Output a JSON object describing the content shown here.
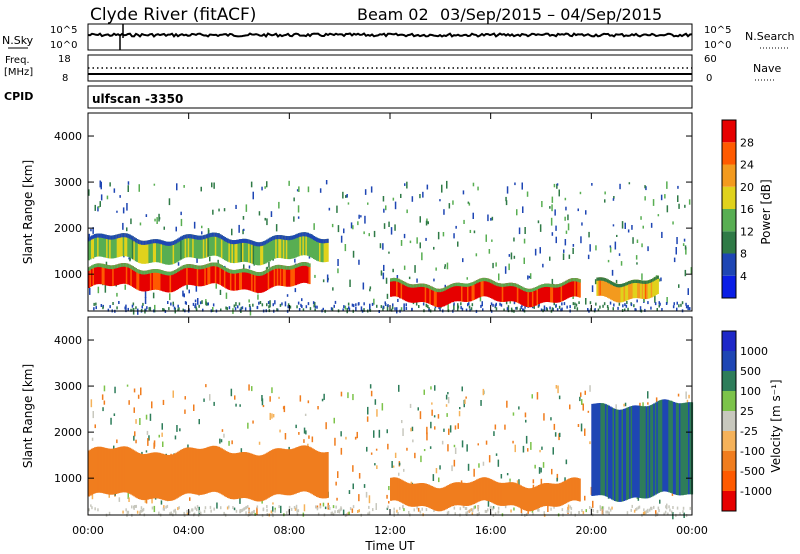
{
  "header": {
    "station": "Clyde River (fitACF)",
    "beam": "Beam 02",
    "date_range": "03/Sep/2015 – 04/Sep/2015"
  },
  "strip_labels": {
    "nsky": "N.Sky",
    "nsky_top": "10^5",
    "nsky_bottom": "10^0",
    "nsearch": "N.Search",
    "nsearch_top": "10^5",
    "nsearch_bottom": "10^0",
    "freq_line1": "Freq.",
    "freq_line2": "[MHz]",
    "freq_top": "18",
    "freq_bottom": "8",
    "nave": "Nave",
    "nave_top": "60",
    "nave_bottom": "0",
    "cpid": "CPID",
    "cpid_value": "ulfscan -3350"
  },
  "colors": {
    "power_scale": [
      "#0a1ee6",
      "#1e46b4",
      "#2f7a46",
      "#58ae52",
      "#e0d21c",
      "#f39a1e",
      "#ff5a00",
      "#e60000"
    ],
    "velocity_scale": [
      "#e60000",
      "#ff5a00",
      "#f07d1e",
      "#f5b25a",
      "#c8c8be",
      "#7cc34a",
      "#2e7d5a",
      "#1e46b4",
      "#1e28c8"
    ]
  },
  "chart_data": [
    {
      "type": "heatmap",
      "panel": "power",
      "ylabel": "Slant Range [km]",
      "y_ticks": [
        "1000",
        "2000",
        "3000",
        "4000"
      ],
      "ylim": [
        200,
        4500
      ],
      "x_ticks": [
        "00:00",
        "04:00",
        "08:00",
        "12:00",
        "16:00",
        "20:00",
        "00:00"
      ],
      "xlim_hours": [
        0,
        24
      ],
      "colorbar_label": "Power [dB]",
      "colorbar_ticks": [
        "4",
        "8",
        "12",
        "16",
        "20",
        "24",
        "28"
      ],
      "clim": [
        0,
        30
      ],
      "features": [
        {
          "desc": "high power band",
          "t_start_h": 0.0,
          "t_end_h": 8.8,
          "range_km": [
            700,
            1150
          ],
          "power_db": 28
        },
        {
          "desc": "upper band",
          "t_start_h": 0.0,
          "t_end_h": 9.5,
          "range_km": [
            1300,
            1800
          ],
          "power_db": 14
        },
        {
          "desc": "afternoon layer",
          "t_start_h": 12.0,
          "t_end_h": 19.5,
          "range_km": [
            400,
            800
          ],
          "power_db": 28
        },
        {
          "desc": "evening echoes",
          "t_start_h": 20.2,
          "t_end_h": 22.6,
          "range_km": [
            500,
            900
          ],
          "power_db": 20
        }
      ]
    },
    {
      "type": "heatmap",
      "panel": "velocity",
      "ylabel": "Slant Range [km]",
      "y_ticks": [
        "1000",
        "2000",
        "3000",
        "4000"
      ],
      "ylim": [
        200,
        4500
      ],
      "x_ticks": [
        "00:00",
        "04:00",
        "08:00",
        "12:00",
        "16:00",
        "20:00",
        "00:00"
      ],
      "xlim_hours": [
        0,
        24
      ],
      "xlabel": "Time UT",
      "colorbar_label": "Velocity [m s⁻¹]",
      "colorbar_ticks": [
        "1000",
        "500",
        "100",
        "25",
        "-25",
        "-100",
        "-500",
        "-1000"
      ],
      "features": [
        {
          "desc": "westward flow band",
          "t_start_h": 0.0,
          "t_end_h": 9.5,
          "range_km": [
            600,
            1600
          ],
          "velocity_ms": -300
        },
        {
          "desc": "afternoon slow layer",
          "t_start_h": 12.0,
          "t_end_h": 19.5,
          "range_km": [
            400,
            900
          ],
          "velocity_ms": -150
        },
        {
          "desc": "evening toward flow",
          "t_start_h": 20.0,
          "t_end_h": 24.0,
          "range_km": [
            600,
            2600
          ],
          "velocity_ms": 500
        }
      ]
    }
  ],
  "xlabel": "Time UT"
}
